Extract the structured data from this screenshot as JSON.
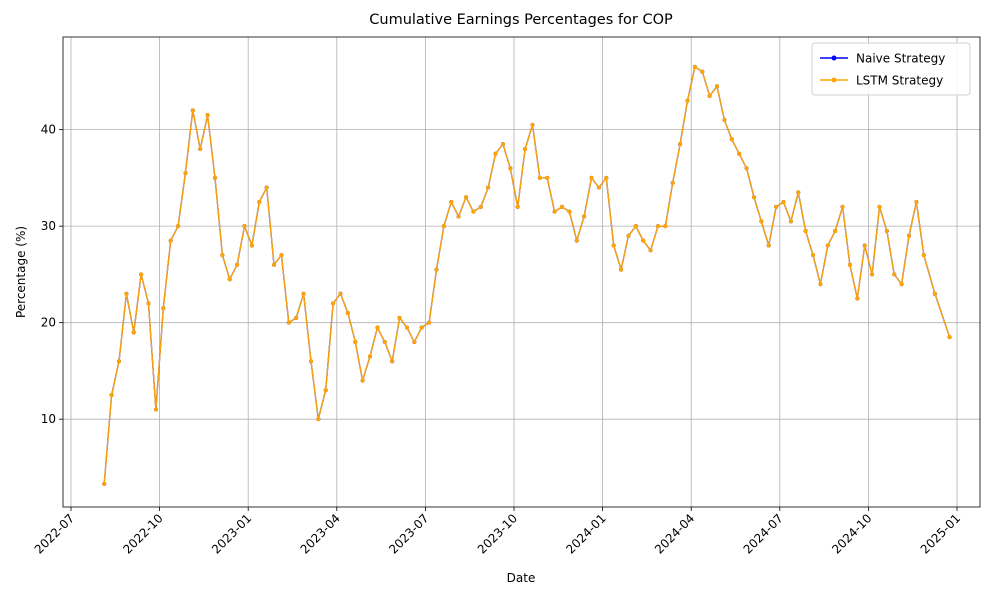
{
  "chart_data": {
    "type": "line",
    "title": "Cumulative Earnings Percentages for COP",
    "x_label": "Date",
    "y_label": "Percentage (%)",
    "x": [
      "2022-08",
      "2022-08",
      "2022-08",
      "2022-08",
      "2022-09",
      "2022-09",
      "2022-09",
      "2022-09",
      "2022-10",
      "2022-10",
      "2022-10",
      "2022-10",
      "2022-11",
      "2022-11",
      "2022-11",
      "2022-11",
      "2022-12",
      "2022-12",
      "2022-12",
      "2022-12",
      "2023-01",
      "2023-01",
      "2023-01",
      "2023-01",
      "2023-02",
      "2023-02",
      "2023-02",
      "2023-02",
      "2023-03",
      "2023-03",
      "2023-03",
      "2023-03",
      "2023-04",
      "2023-04",
      "2023-04",
      "2023-04",
      "2023-05",
      "2023-05",
      "2023-05",
      "2023-05",
      "2023-06",
      "2023-06",
      "2023-06",
      "2023-06",
      "2023-07",
      "2023-07",
      "2023-07",
      "2023-07",
      "2023-08",
      "2023-08",
      "2023-08",
      "2023-08",
      "2023-09",
      "2023-09",
      "2023-09",
      "2023-09",
      "2023-10",
      "2023-10",
      "2023-10",
      "2023-10",
      "2023-11",
      "2023-11",
      "2023-11",
      "2023-11",
      "2023-12",
      "2023-12",
      "2023-12",
      "2023-12",
      "2024-01",
      "2024-01",
      "2024-01",
      "2024-01",
      "2024-02",
      "2024-02",
      "2024-02",
      "2024-02",
      "2024-03",
      "2024-03",
      "2024-03",
      "2024-03",
      "2024-04",
      "2024-04",
      "2024-04",
      "2024-04",
      "2024-05",
      "2024-05",
      "2024-05",
      "2024-05",
      "2024-06",
      "2024-06",
      "2024-06",
      "2024-06",
      "2024-07",
      "2024-07",
      "2024-07",
      "2024-07",
      "2024-08",
      "2024-08",
      "2024-08",
      "2024-08",
      "2024-09",
      "2024-09",
      "2024-09",
      "2024-09",
      "2024-10",
      "2024-10",
      "2024-10",
      "2024-10",
      "2024-11",
      "2024-11",
      "2024-11",
      "2024-11",
      "2024-12",
      "2024-12"
    ],
    "series": [
      {
        "name": "Naive Strategy",
        "color": "#0000ff",
        "values": [
          3.3,
          12.5,
          16,
          23,
          19,
          25,
          22,
          11,
          21.5,
          28.5,
          30,
          35.5,
          42,
          38,
          41.5,
          35,
          27,
          24.5,
          26,
          30,
          28,
          32.5,
          34,
          26,
          27,
          20,
          20.5,
          23,
          16,
          10,
          13,
          22,
          23,
          21,
          18,
          14,
          16.5,
          19.5,
          18,
          16,
          20.5,
          19.5,
          18,
          19.5,
          20,
          25.5,
          30,
          32.5,
          31,
          33,
          31.5,
          32,
          34,
          37.5,
          38.5,
          36,
          32,
          38,
          40.5,
          35,
          35,
          31.5,
          32,
          31.5,
          28.5,
          31,
          35,
          34,
          35,
          28,
          25.5,
          29,
          30,
          28.5,
          27.5,
          30,
          30,
          34.5,
          38.5,
          43,
          46.5,
          46,
          43.5,
          44.5,
          41,
          39,
          37.5,
          36,
          33,
          30.5,
          28,
          32,
          32.5,
          30.5,
          33.5,
          29.5,
          27,
          24,
          28,
          29.5,
          32,
          26,
          22.5,
          28,
          25,
          32,
          29.5,
          25,
          24,
          29,
          32.5,
          27,
          23,
          18.5
        ]
      },
      {
        "name": "LSTM Strategy",
        "color": "#ffa500",
        "values": [
          3.3,
          12.5,
          16,
          23,
          19,
          25,
          22,
          11,
          21.5,
          28.5,
          30,
          35.5,
          42,
          38,
          41.5,
          35,
          27,
          24.5,
          26,
          30,
          28,
          32.5,
          34,
          26,
          27,
          20,
          20.5,
          23,
          16,
          10,
          13,
          22,
          23,
          21,
          18,
          14,
          16.5,
          19.5,
          18,
          16,
          20.5,
          19.5,
          18,
          19.5,
          20,
          25.5,
          30,
          32.5,
          31,
          33,
          31.5,
          32,
          34,
          37.5,
          38.5,
          36,
          32,
          38,
          40.5,
          35,
          35,
          31.5,
          32,
          31.5,
          28.5,
          31,
          35,
          34,
          35,
          28,
          25.5,
          29,
          30,
          28.5,
          27.5,
          30,
          30,
          34.5,
          38.5,
          43,
          46.5,
          46,
          43.5,
          44.5,
          41,
          39,
          37.5,
          36,
          33,
          30.5,
          28,
          32,
          32.5,
          30.5,
          33.5,
          29.5,
          27,
          24,
          28,
          29.5,
          32,
          26,
          22.5,
          28,
          25,
          32,
          29.5,
          25,
          24,
          29,
          32.5,
          27,
          23,
          18.5
        ]
      }
    ],
    "xlim": [
      "2022-07",
      "2025-01"
    ],
    "xticks": [
      "2022-07",
      "2022-10",
      "2023-01",
      "2023-04",
      "2023-07",
      "2023-10",
      "2024-01",
      "2024-04",
      "2024-07",
      "2024-10",
      "2025-01"
    ],
    "ylim": [
      0.9,
      49.6
    ],
    "yticks": [
      10,
      20,
      30,
      40
    ],
    "grid": true,
    "legend": "upper right"
  }
}
